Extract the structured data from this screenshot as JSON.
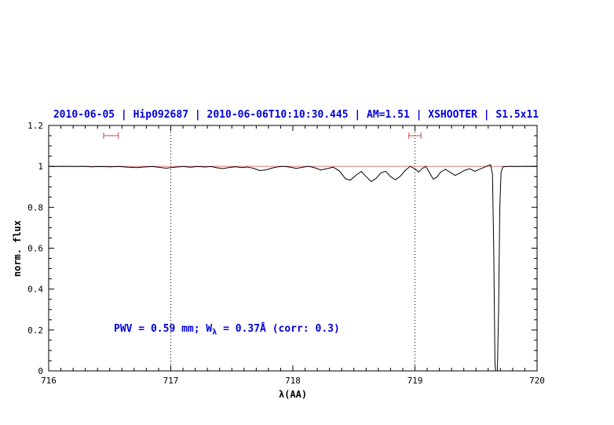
{
  "colors": {
    "title": "#0000dd",
    "annotation": "#0000dd",
    "spectrum": "#000000",
    "model": "#e87878",
    "marker": "#cc4444",
    "frame": "#000000"
  },
  "chart_data": {
    "type": "line",
    "title": "2010-06-05 | Hip092687 | 2010-06-06T10:10:30.445 | AM=1.51 | XSHOOTER | S1.5x11",
    "xlabel": "λ(AA)",
    "ylabel": "norm. flux",
    "xlim": [
      716,
      720
    ],
    "ylim": [
      0,
      1.2
    ],
    "grid": false,
    "legend": "none",
    "x_ticks": {
      "values": [
        716,
        717,
        718,
        719,
        720
      ],
      "labels": [
        "716",
        "717",
        "718",
        "719",
        "720"
      ]
    },
    "y_ticks": {
      "values": [
        0,
        0.2,
        0.4,
        0.6,
        0.8,
        1,
        1.2
      ],
      "labels": [
        "0",
        "0.2",
        "0.4",
        "0.6",
        "0.8",
        "1",
        "1.2"
      ]
    },
    "x_minor_step": 0.1,
    "y_minor_step": 0.05,
    "vlines": [
      717,
      719
    ],
    "fit_windows": [
      {
        "x_min": 716.45,
        "x_max": 716.57,
        "y": 1.15
      },
      {
        "x_min": 718.95,
        "x_max": 719.05,
        "y": 1.15
      }
    ],
    "annotation": {
      "prefix": "PWV = 0.59 mm; W",
      "sub": "λ",
      "suffix": " = 0.37Å (corr: 0.3)",
      "full": "PWV = 0.59 mm; W_λ = 0.37Å (corr: 0.3)"
    },
    "series": [
      {
        "name": "observed-spectrum",
        "color": "#000000",
        "points": [
          [
            716.0,
            1.0
          ],
          [
            716.05,
            0.999
          ],
          [
            716.12,
            1.0
          ],
          [
            716.2,
            0.999
          ],
          [
            716.28,
            1.0
          ],
          [
            716.35,
            0.998
          ],
          [
            716.42,
            0.999
          ],
          [
            716.5,
            0.998
          ],
          [
            716.58,
            0.999
          ],
          [
            716.65,
            0.996
          ],
          [
            716.72,
            0.994
          ],
          [
            716.78,
            0.997
          ],
          [
            716.85,
            0.999
          ],
          [
            716.9,
            0.996
          ],
          [
            716.96,
            0.991
          ],
          [
            717.0,
            0.994
          ],
          [
            717.05,
            0.997
          ],
          [
            717.1,
            0.999
          ],
          [
            717.16,
            0.996
          ],
          [
            717.22,
            0.999
          ],
          [
            717.28,
            0.997
          ],
          [
            717.33,
            0.999
          ],
          [
            717.38,
            0.993
          ],
          [
            717.43,
            0.989
          ],
          [
            717.48,
            0.995
          ],
          [
            717.53,
            0.998
          ],
          [
            717.58,
            0.994
          ],
          [
            717.63,
            0.997
          ],
          [
            717.68,
            0.99
          ],
          [
            717.73,
            0.979
          ],
          [
            717.78,
            0.983
          ],
          [
            717.83,
            0.992
          ],
          [
            717.88,
            0.998
          ],
          [
            717.93,
            1.0
          ],
          [
            717.98,
            0.996
          ],
          [
            718.03,
            0.99
          ],
          [
            718.08,
            0.996
          ],
          [
            718.13,
            1.0
          ],
          [
            718.18,
            0.993
          ],
          [
            718.23,
            0.982
          ],
          [
            718.28,
            0.989
          ],
          [
            718.33,
            0.996
          ],
          [
            718.38,
            0.978
          ],
          [
            718.43,
            0.94
          ],
          [
            718.47,
            0.932
          ],
          [
            718.52,
            0.958
          ],
          [
            718.56,
            0.975
          ],
          [
            718.6,
            0.95
          ],
          [
            718.64,
            0.926
          ],
          [
            718.68,
            0.94
          ],
          [
            718.72,
            0.968
          ],
          [
            718.76,
            0.976
          ],
          [
            718.8,
            0.95
          ],
          [
            718.84,
            0.934
          ],
          [
            718.88,
            0.952
          ],
          [
            718.92,
            0.98
          ],
          [
            718.96,
            1.0
          ],
          [
            719.0,
            0.988
          ],
          [
            719.03,
            0.972
          ],
          [
            719.06,
            0.99
          ],
          [
            719.09,
            1.0
          ],
          [
            719.12,
            0.968
          ],
          [
            719.15,
            0.937
          ],
          [
            719.18,
            0.948
          ],
          [
            719.21,
            0.972
          ],
          [
            719.25,
            0.986
          ],
          [
            719.29,
            0.97
          ],
          [
            719.33,
            0.956
          ],
          [
            719.37,
            0.968
          ],
          [
            719.41,
            0.982
          ],
          [
            719.45,
            0.988
          ],
          [
            719.49,
            0.976
          ],
          [
            719.53,
            0.986
          ],
          [
            719.57,
            0.996
          ],
          [
            719.6,
            1.004
          ],
          [
            719.62,
            1.008
          ],
          [
            719.635,
            0.96
          ],
          [
            719.645,
            0.6
          ],
          [
            719.655,
            0.05
          ],
          [
            719.66,
            0.0
          ],
          [
            719.675,
            0.0
          ],
          [
            719.685,
            0.3
          ],
          [
            719.695,
            0.8
          ],
          [
            719.705,
            0.97
          ],
          [
            719.72,
            0.998
          ],
          [
            719.78,
            1.0
          ],
          [
            719.85,
            0.999
          ],
          [
            719.92,
            1.0
          ],
          [
            720.0,
            0.999
          ]
        ]
      },
      {
        "name": "telluric-model",
        "color": "#e87878",
        "points": [
          [
            716.0,
            1.0
          ],
          [
            720.0,
            1.0
          ]
        ]
      }
    ]
  }
}
